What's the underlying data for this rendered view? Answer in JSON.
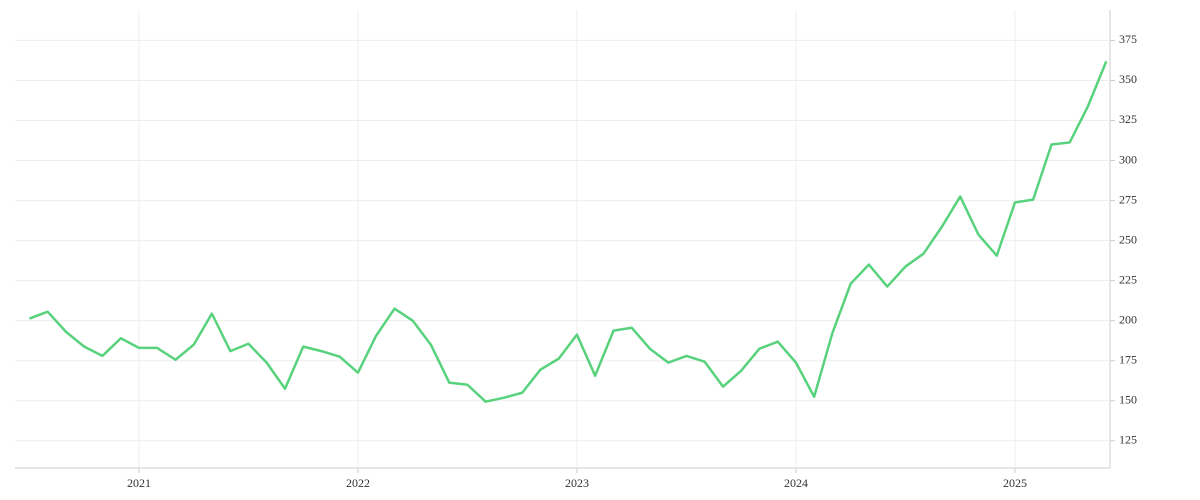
{
  "chart_data": {
    "type": "line",
    "x": [
      2020.5,
      2020.583,
      2020.667,
      2020.75,
      2020.833,
      2020.917,
      2021,
      2021.083,
      2021.167,
      2021.25,
      2021.333,
      2021.417,
      2021.5,
      2021.583,
      2021.667,
      2021.75,
      2021.833,
      2021.917,
      2022,
      2022.083,
      2022.167,
      2022.25,
      2022.333,
      2022.417,
      2022.5,
      2022.583,
      2022.667,
      2022.75,
      2022.833,
      2022.917,
      2023,
      2023.083,
      2023.167,
      2023.25,
      2023.333,
      2023.417,
      2023.5,
      2023.583,
      2023.667,
      2023.75,
      2023.833,
      2023.917,
      2024,
      2024.083,
      2024.167,
      2024.25,
      2024.333,
      2024.417,
      2024.5,
      2024.583,
      2024.667,
      2024.75,
      2024.833,
      2024.917,
      2025,
      2025.083,
      2025.167,
      2025.25,
      2025.333,
      2025.417
    ],
    "series": [
      {
        "color": "#58d27c",
        "values": [
          201.3,
          205.6,
          193,
          183.8,
          178,
          189,
          183,
          183,
          175.6,
          185,
          204.4,
          181,
          185.6,
          173.8,
          157.5,
          183.8,
          181,
          177.5,
          167.5,
          190.6,
          207.5,
          200,
          185,
          161.3,
          160,
          149.4,
          151.9,
          155,
          169.4,
          176.3,
          191.3,
          165.6,
          193.8,
          195.6,
          182.5,
          173.8,
          178,
          174.4,
          158.8,
          168.8,
          182.5,
          186.9,
          173.8,
          152.5,
          192.5,
          223.1,
          235,
          221.3,
          233.8,
          241.9,
          258.8,
          277.5,
          253.8,
          240.6,
          273.8,
          275.6,
          310,
          311.3,
          333.8,
          361.9
        ]
      }
    ],
    "xlim": [
      2020.434,
      2025.434
    ],
    "xticks": [
      2021,
      2022,
      2023,
      2024,
      2025
    ],
    "ylim": [
      113,
      394
    ],
    "yticks": [
      125,
      150,
      175,
      200,
      225,
      250,
      275,
      300,
      325,
      350,
      375
    ],
    "grid": true
  }
}
